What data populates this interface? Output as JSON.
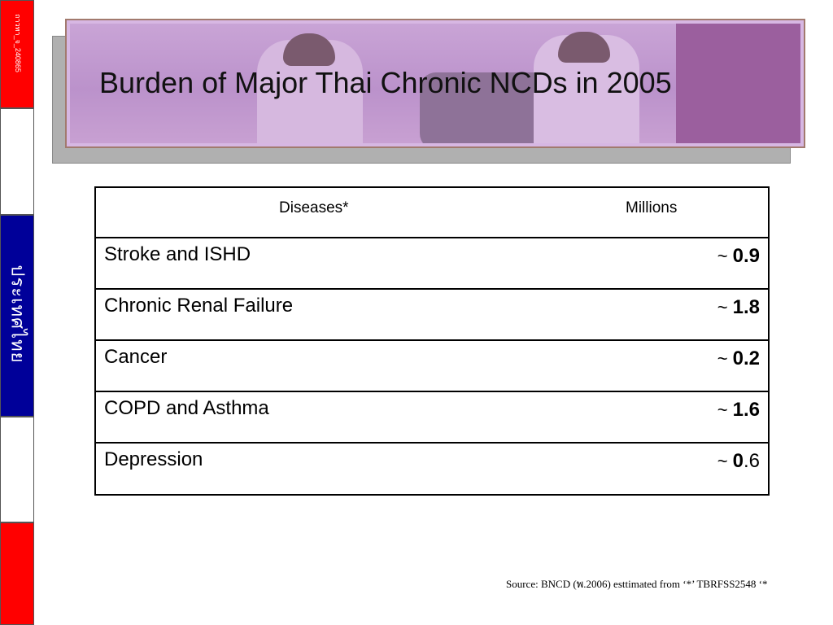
{
  "sidebar": {
    "small_label": "ถาวทา_จ_240865",
    "thai_label": "ประเทศไทย",
    "colors": {
      "red": "#ff0000",
      "white": "#ffffff",
      "blue": "#000099"
    }
  },
  "title": "Burden of Major Thai Chronic NCDs in 2005",
  "table": {
    "headers": {
      "diseases": "Diseases*",
      "millions": "Millions"
    },
    "rows": [
      {
        "disease": "Stroke and  ISHD",
        "tilde": "~",
        "value_bold": "0.9",
        "value_rest": ""
      },
      {
        "disease": "Chronic Renal Failure",
        "tilde": "~",
        "value_bold": "1.8",
        "value_rest": ""
      },
      {
        "disease": "Cancer",
        "tilde": "~",
        "value_bold": "0.2",
        "value_rest": ""
      },
      {
        "disease": "COPD and Asthma",
        "tilde": "~",
        "value_bold": "1.6",
        "value_rest": ""
      },
      {
        "disease": "Depression",
        "tilde": "~",
        "value_bold": "0",
        "value_rest": ".6"
      }
    ]
  },
  "source": "Source: BNCD (พ.2006)  esttimated from  ‘*’ TBRFSS2548 ‘*"
}
